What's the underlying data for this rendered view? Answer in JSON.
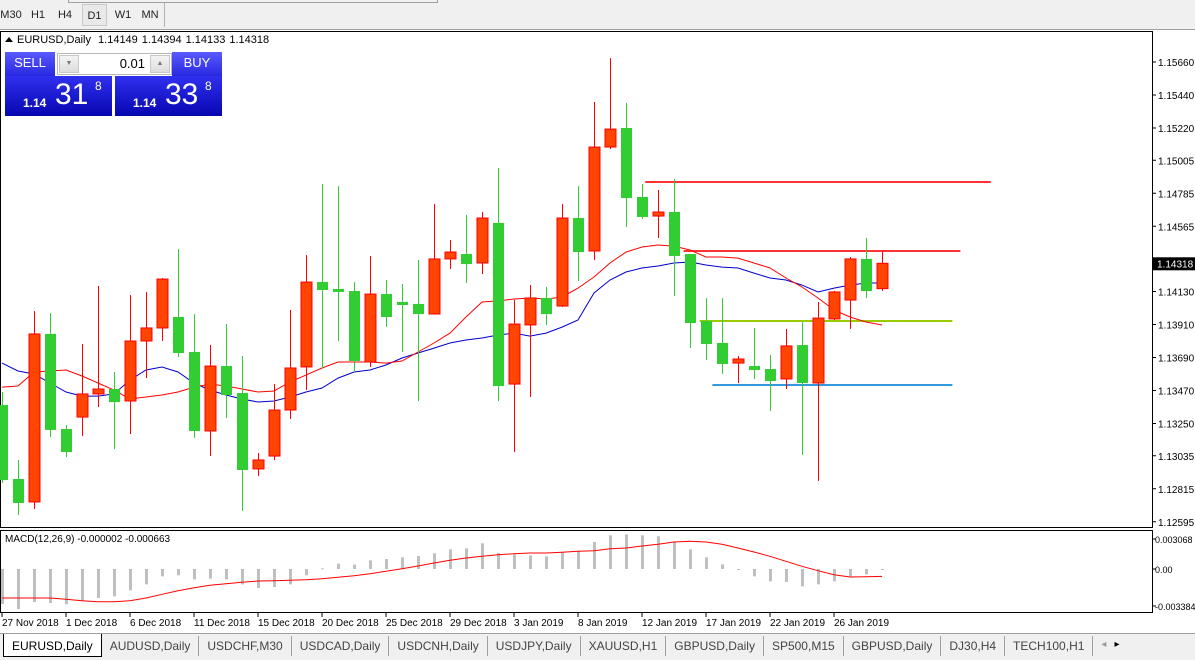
{
  "toolbar": {
    "timeframes": [
      {
        "label": "M30",
        "active": false
      },
      {
        "label": "H1",
        "active": false
      },
      {
        "label": "H4",
        "active": false
      },
      {
        "label": "D1",
        "active": true
      },
      {
        "label": "W1",
        "active": false
      },
      {
        "label": "MN",
        "active": false
      }
    ]
  },
  "chart_header": {
    "symbol": "EURUSD,Daily",
    "open": "1.14149",
    "high": "1.14394",
    "low": "1.14133",
    "close": "1.14318",
    "icon": "triangle-up-icon"
  },
  "one_click_trading": {
    "sell_label": "SELL",
    "buy_label": "BUY",
    "lot": "0.01",
    "sell_price": {
      "prefix": "1.14",
      "big": "31",
      "sup": "8"
    },
    "buy_price": {
      "prefix": "1.14",
      "big": "33",
      "sup": "8"
    },
    "color": "#2020e0"
  },
  "chart_data": [
    {
      "type": "candlestick",
      "symbol": "EURUSD",
      "period": "Daily",
      "ylim": [
        1.12595,
        1.1566
      ],
      "price_ticks": [
        "1.15660",
        "1.15440",
        "1.15220",
        "1.15005",
        "1.14785",
        "1.14565",
        "1.14130",
        "1.13910",
        "1.13690",
        "1.13470",
        "1.13250",
        "1.13035",
        "1.12815",
        "1.12595"
      ],
      "current_price": "1.14318",
      "x_ticks": [
        {
          "bar": 0,
          "label": "27 Nov 2018"
        },
        {
          "bar": 4,
          "label": "1 Dec 2018"
        },
        {
          "bar": 8,
          "label": "6 Dec 2018"
        },
        {
          "bar": 12,
          "label": "11 Dec 2018"
        },
        {
          "bar": 16,
          "label": "15 Dec 2018"
        },
        {
          "bar": 20,
          "label": "20 Dec 2018"
        },
        {
          "bar": 24,
          "label": "25 Dec 2018"
        },
        {
          "bar": 28,
          "label": "29 Dec 2018"
        },
        {
          "bar": 32,
          "label": "3 Jan 2019"
        },
        {
          "bar": 36,
          "label": "8 Jan 2019"
        },
        {
          "bar": 40,
          "label": "12 Jan 2019"
        },
        {
          "bar": 44,
          "label": "17 Jan 2019"
        },
        {
          "bar": 48,
          "label": "22 Jan 2019"
        },
        {
          "bar": 52,
          "label": "26 Jan 2019"
        }
      ],
      "colors": {
        "up_body": "#FF4500",
        "up_outline": "#FF0000",
        "down_body": "#32CD32",
        "ma_fast": "#FF0000",
        "ma_slow": "#0000CC"
      },
      "ohlc": [
        [
          1.13373,
          1.1346,
          1.12853,
          1.12873
        ],
        [
          1.1288,
          1.13007,
          1.1264,
          1.1272
        ],
        [
          1.12727,
          1.14,
          1.1268,
          1.13847
        ],
        [
          1.13847,
          1.13987,
          1.1316,
          1.13207
        ],
        [
          1.13213,
          1.1324,
          1.13027,
          1.1306
        ],
        [
          1.13293,
          1.1378,
          1.13167,
          1.13447
        ],
        [
          1.13447,
          1.14167,
          1.1336,
          1.1348
        ],
        [
          1.1348,
          1.13593,
          1.1308,
          1.13393
        ],
        [
          1.134,
          1.14107,
          1.1318,
          1.138
        ],
        [
          1.138,
          1.14127,
          1.13553,
          1.13887
        ],
        [
          1.13887,
          1.1422,
          1.138,
          1.14213
        ],
        [
          1.1396,
          1.14413,
          1.13693,
          1.1372
        ],
        [
          1.13727,
          1.1398,
          1.13153,
          1.132
        ],
        [
          1.132,
          1.13773,
          1.13033,
          1.13633
        ],
        [
          1.13633,
          1.13913,
          1.13287,
          1.1344
        ],
        [
          1.13453,
          1.137,
          1.12667,
          1.1294
        ],
        [
          1.12947,
          1.13053,
          1.129,
          1.13007
        ],
        [
          1.13033,
          1.13513,
          1.13007,
          1.1334
        ],
        [
          1.1334,
          1.14007,
          1.1328,
          1.1362
        ],
        [
          1.13627,
          1.14373,
          1.13473,
          1.14193
        ],
        [
          1.14193,
          1.14847,
          1.1362,
          1.1414
        ],
        [
          1.14147,
          1.14833,
          1.138,
          1.14127
        ],
        [
          1.14133,
          1.14193,
          1.13593,
          1.13667
        ],
        [
          1.1366,
          1.14367,
          1.13627,
          1.14113
        ],
        [
          1.14113,
          1.14207,
          1.13893,
          1.1396
        ],
        [
          1.1406,
          1.1418,
          1.13727,
          1.1404
        ],
        [
          1.14047,
          1.1434,
          1.134,
          1.1398
        ],
        [
          1.1398,
          1.14713,
          1.1398,
          1.14347
        ],
        [
          1.14347,
          1.14473,
          1.1428,
          1.14393
        ],
        [
          1.1438,
          1.1464,
          1.14187,
          1.14313
        ],
        [
          1.1432,
          1.1466,
          1.14247,
          1.1462
        ],
        [
          1.14587,
          1.14953,
          1.134,
          1.135
        ],
        [
          1.13513,
          1.14073,
          1.1306,
          1.13913
        ],
        [
          1.13907,
          1.14173,
          1.13427,
          1.14087
        ],
        [
          1.14087,
          1.1416,
          1.13907,
          1.1398
        ],
        [
          1.14033,
          1.14713,
          1.14027,
          1.1462
        ],
        [
          1.1462,
          1.14833,
          1.142,
          1.14393
        ],
        [
          1.144,
          1.15393,
          1.1434,
          1.15093
        ],
        [
          1.15093,
          1.15686,
          1.1508,
          1.15213
        ],
        [
          1.1522,
          1.15387,
          1.1456,
          1.14753
        ],
        [
          1.1476,
          1.14847,
          1.14613,
          1.14627
        ],
        [
          1.14633,
          1.14807,
          1.14487,
          1.1466
        ],
        [
          1.1466,
          1.1488,
          1.141,
          1.14367
        ],
        [
          1.1438,
          1.1438,
          1.13753,
          1.1392
        ],
        [
          1.13933,
          1.14087,
          1.13673,
          1.1378
        ],
        [
          1.13787,
          1.14087,
          1.1358,
          1.13647
        ],
        [
          1.13653,
          1.137,
          1.1352,
          1.1368
        ],
        [
          1.13633,
          1.13887,
          1.13547,
          1.13607
        ],
        [
          1.13613,
          1.13707,
          1.13333,
          1.13533
        ],
        [
          1.13547,
          1.1388,
          1.1348,
          1.13767
        ],
        [
          1.13773,
          1.13927,
          1.1304,
          1.1352
        ],
        [
          1.1352,
          1.1406,
          1.12867,
          1.13953
        ],
        [
          1.13947,
          1.14133,
          1.1394,
          1.14127
        ],
        [
          1.14073,
          1.1436,
          1.1388,
          1.14347
        ],
        [
          1.14347,
          1.14487,
          1.14087,
          1.14133
        ],
        [
          1.14149,
          1.14394,
          1.14133,
          1.14318
        ]
      ],
      "ma_fast": [
        1.13493,
        1.135,
        1.13593,
        1.136,
        1.13607,
        1.13567,
        1.1352,
        1.13473,
        1.13413,
        1.13427,
        1.1344,
        1.1346,
        1.13493,
        1.13513,
        1.135,
        1.1348,
        1.1346,
        1.13467,
        1.13527,
        1.13573,
        1.1362,
        1.1366,
        1.1366,
        1.1366,
        1.13653,
        1.13667,
        1.13727,
        1.13787,
        1.13853,
        1.1396,
        1.1406,
        1.14067,
        1.1408,
        1.14087,
        1.1408,
        1.14093,
        1.14153,
        1.14227,
        1.1432,
        1.14393,
        1.14427,
        1.1444,
        1.14433,
        1.14407,
        1.1436,
        1.1436,
        1.14353,
        1.1432,
        1.14287,
        1.1422,
        1.1416,
        1.14087,
        1.14007,
        1.1396,
        1.13927,
        1.13907
      ],
      "ma_slow": [
        1.13653,
        1.136,
        1.1358,
        1.1352,
        1.1346,
        1.13433,
        1.13433,
        1.13447,
        1.1354,
        1.13607,
        1.13627,
        1.13593,
        1.1352,
        1.13473,
        1.1344,
        1.13413,
        1.13393,
        1.134,
        1.13427,
        1.1346,
        1.13487,
        1.13553,
        1.13593,
        1.13607,
        1.1364,
        1.13687,
        1.1372,
        1.13753,
        1.13787,
        1.13807,
        1.1382,
        1.1384,
        1.13853,
        1.13833,
        1.13853,
        1.13893,
        1.1394,
        1.1412,
        1.14207,
        1.1426,
        1.14287,
        1.143,
        1.1432,
        1.14327,
        1.14307,
        1.14293,
        1.14287,
        1.14253,
        1.1422,
        1.14207,
        1.14173,
        1.14127,
        1.14153,
        1.14173,
        1.14187,
        1.14187
      ],
      "horizontal_lines": [
        {
          "price": 1.1486,
          "from_bar": 40.2,
          "to_bar": 61.8,
          "color": "#FF3333"
        },
        {
          "price": 1.144,
          "from_bar": 42.6,
          "to_bar": 59.9,
          "color": "#FF3333"
        },
        {
          "price": 1.13933,
          "from_bar": 43.6,
          "to_bar": 59.4,
          "color": "#99CC00"
        },
        {
          "price": 1.13507,
          "from_bar": 44.4,
          "to_bar": 59.4,
          "color": "#3399DD"
        }
      ]
    },
    {
      "type": "bar",
      "title": "MACD(12,26,9) -0.000002 -0.000663",
      "ylim": [
        -0.003384,
        0.003068
      ],
      "y_ticks": [
        "0.003068",
        "0.00",
        "-0.003384"
      ],
      "colors": {
        "histogram": "#C0C0C0",
        "signal": "#FF0000"
      },
      "histogram": [
        -0.00315,
        -0.0036,
        -0.00297,
        -0.00306,
        -0.00318,
        -0.00291,
        -0.00261,
        -0.00246,
        -0.00192,
        -0.00138,
        -0.00066,
        -0.00057,
        -0.00093,
        -0.00087,
        -0.00093,
        -0.00138,
        -0.00171,
        -0.00162,
        -0.00138,
        -0.00057,
        6e-05,
        0.00048,
        0.00039,
        0.00078,
        0.0009,
        0.00105,
        0.00117,
        0.00141,
        0.00177,
        0.00186,
        0.00231,
        0.00144,
        0.00132,
        0.00123,
        0.00114,
        0.00153,
        0.00165,
        0.00243,
        0.00303,
        0.00312,
        0.00303,
        0.00294,
        0.00249,
        0.00177,
        0.00105,
        0.00042,
        -6e-05,
        -0.00066,
        -0.00111,
        -0.00117,
        -0.00156,
        -0.00138,
        -0.00111,
        -0.00066,
        -0.00048,
        -2e-06
      ],
      "signal": [
        -0.00261,
        -0.00261,
        -0.00261,
        -0.00261,
        -0.00273,
        -0.00285,
        -0.00294,
        -0.00294,
        -0.00285,
        -0.00261,
        -0.00228,
        -0.00195,
        -0.00168,
        -0.00147,
        -0.00132,
        -0.0012,
        -0.00108,
        -0.00105,
        -0.00102,
        -0.00096,
        -0.00087,
        -0.00075,
        -0.0006,
        -0.00042,
        -0.00021,
        3e-05,
        0.00027,
        0.00054,
        0.00078,
        0.00099,
        0.00114,
        0.00129,
        0.00138,
        0.00144,
        0.00144,
        0.0015,
        0.00159,
        0.00165,
        0.00183,
        0.00189,
        0.00207,
        0.00222,
        0.00243,
        0.00249,
        0.00243,
        0.00222,
        0.00189,
        0.00153,
        0.00114,
        0.00069,
        0.00024,
        -0.00015,
        -0.00051,
        -0.00072,
        -0.0007,
        -0.000663
      ]
    }
  ],
  "tabs": [
    {
      "label": "EURUSD,Daily",
      "active": true
    },
    {
      "label": "AUDUSD,Daily"
    },
    {
      "label": "USDCHF,M30"
    },
    {
      "label": "USDCAD,Daily"
    },
    {
      "label": "USDCNH,Daily"
    },
    {
      "label": "USDJPY,Daily"
    },
    {
      "label": "XAUUSD,H1"
    },
    {
      "label": "GBPUSD,Daily"
    },
    {
      "label": "SP500,M15"
    },
    {
      "label": "GBPUSD,Daily"
    },
    {
      "label": "DJ30,H4"
    },
    {
      "label": "TECH100,H1"
    }
  ],
  "tab_scroll": {
    "left": "◂",
    "right": "▸"
  }
}
